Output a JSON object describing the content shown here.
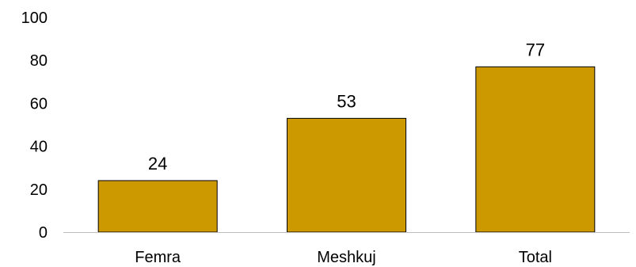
{
  "chart_data": {
    "type": "bar",
    "categories": [
      "Femra",
      "Meshkuj",
      "Total"
    ],
    "values": [
      24,
      53,
      77
    ],
    "data_labels": [
      "24",
      "53",
      "77"
    ],
    "y_ticks": [
      0,
      20,
      40,
      60,
      80,
      100
    ],
    "ylim": [
      0,
      100
    ],
    "grid": false,
    "legend": "none",
    "colors": {
      "bar_fill": "#CC9900",
      "bar_stroke": "#000000",
      "axis": "#BFBFBF"
    }
  }
}
